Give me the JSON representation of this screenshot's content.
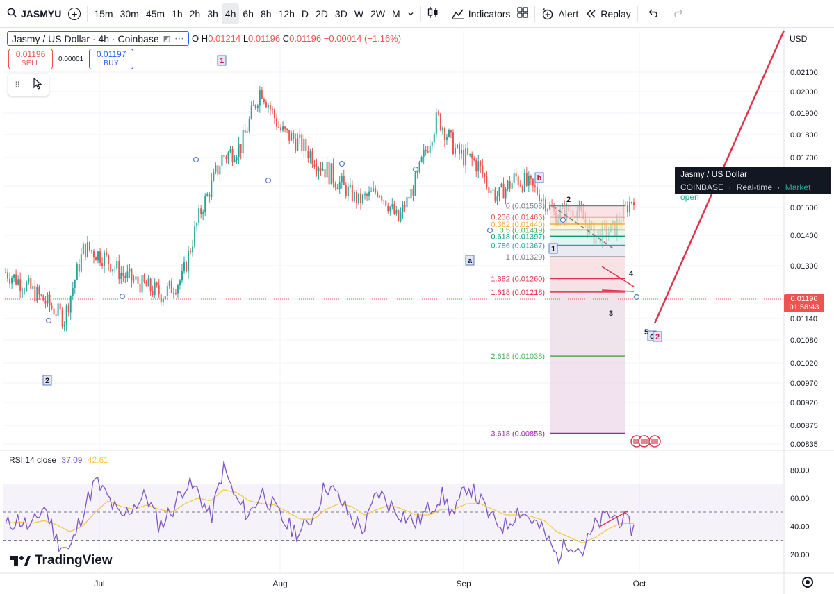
{
  "toolbar": {
    "symbol": "JASMYU",
    "intervals": [
      "15m",
      "30m",
      "45m",
      "1h",
      "2h",
      "3h",
      "4h",
      "6h",
      "8h",
      "12h",
      "D",
      "2D",
      "3D",
      "W",
      "2W",
      "M"
    ],
    "active_interval": "4h",
    "indicators_label": "Indicators",
    "alert_label": "Alert",
    "replay_label": "Replay"
  },
  "legend": {
    "title": "Jasmy / US Dollar · 4h · Coinbase",
    "o_label": "O",
    "h_label": "H",
    "l_label": "L",
    "c_label": "C",
    "h": "0.01214",
    "l": "0.01196",
    "c": "0.01196",
    "change": "−0.00014 (−1.16%)"
  },
  "trade": {
    "sell_price": "0.01196",
    "sell_label": "SELL",
    "spread": "0.00001",
    "buy_price": "0.01197",
    "buy_label": "BUY"
  },
  "currency": "USD",
  "tooltip": {
    "name": "Jasmy / US Dollar",
    "exchange": "COINBASE",
    "feed": "Real-time",
    "status": "Market open"
  },
  "last_price": {
    "price": "0.01196",
    "countdown": "01:58:43"
  },
  "rsi": {
    "label": "RSI 14 close",
    "v1": "37.09",
    "v2": "42.61"
  },
  "branding": "TradingView",
  "colors": {
    "up": "#26a69a",
    "down": "#ef5350",
    "rsi": "#7e57c2",
    "rsi_ma": "#f7c948",
    "trend": "#e0314b"
  },
  "chart_data": [
    {
      "type": "line",
      "title": "Jasmy / US Dollar · 4h · Coinbase",
      "price_axis": {
        "ticks": [
          0.021,
          0.02,
          0.019,
          0.018,
          0.017,
          0.016,
          0.015,
          0.014,
          0.013,
          0.01196,
          0.0114,
          0.0108,
          0.0102,
          0.0097,
          0.0092,
          0.00875,
          0.00835
        ],
        "tick_labels": [
          "0.02100",
          "0.02000",
          "0.01900",
          "0.01800",
          "0.01700",
          "",
          "0.01500",
          "0.01400",
          "0.01300",
          "",
          "0.01140",
          "0.01080",
          "0.01020",
          "0.00970",
          "0.00920",
          "0.00875",
          "0.00835"
        ]
      },
      "time_axis": [
        "Jul",
        "Aug",
        "Sep",
        "Oct"
      ],
      "x": [
        "Jun 25",
        "Jun 28",
        "Jul 1",
        "Jul 4",
        "Jul 7",
        "Jul 10",
        "Jul 13",
        "Jul 15",
        "Jul 17",
        "Jul 20",
        "Jul 24",
        "Jul 28",
        "Aug 1",
        "Aug 4",
        "Aug 8",
        "Aug 12",
        "Aug 14",
        "Aug 16",
        "Aug 19",
        "Aug 22",
        "Aug 26",
        "Aug 29",
        "Sep 1",
        "Sep 4",
        "Sep 8",
        "Sep 12",
        "Sep 15",
        "Sep 17",
        "Sep 20",
        "Sep 23",
        "Sep 25",
        "Sep 27",
        "Sep 29"
      ],
      "close": [
        0.0128,
        0.0124,
        0.0119,
        0.0114,
        0.0136,
        0.0133,
        0.0127,
        0.0124,
        0.0121,
        0.0126,
        0.015,
        0.017,
        0.0175,
        0.0202,
        0.0182,
        0.0176,
        0.0168,
        0.0161,
        0.0153,
        0.0158,
        0.0145,
        0.0163,
        0.0188,
        0.0172,
        0.0168,
        0.0155,
        0.0163,
        0.0158,
        0.0147,
        0.015,
        0.014,
        0.0142,
        0.0155
      ],
      "fib_levels": [
        {
          "ratio": "0",
          "price": 0.01508,
          "label": "0 (0.01508)",
          "color": "#787b86"
        },
        {
          "ratio": "0.236",
          "price": 0.01466,
          "label": "0.236 (0.01466)",
          "color": "#e04f4f"
        },
        {
          "ratio": "0.382",
          "price": 0.0144,
          "label": "0.382 (0.01440)",
          "color": "#f3a93a"
        },
        {
          "ratio": "0.5",
          "price": 0.01419,
          "label": "0.5 (0.01419)",
          "color": "#4caf50"
        },
        {
          "ratio": "0.618",
          "price": 0.01397,
          "label": "0.618 (0.01397)",
          "color": "#089981"
        },
        {
          "ratio": "0.786",
          "price": 0.01367,
          "label": "0.786 (0.01367)",
          "color": "#26a69a"
        },
        {
          "ratio": "1",
          "price": 0.01329,
          "label": "1 (0.01329)",
          "color": "#787b86"
        },
        {
          "ratio": "1.382",
          "price": 0.0126,
          "label": "1.382 (0.01260)",
          "color": "#e0314b"
        },
        {
          "ratio": "1.618",
          "price": 0.01218,
          "label": "1.618 (0.01218)",
          "color": "#e0314b"
        },
        {
          "ratio": "2.618",
          "price": 0.01038,
          "label": "2.618 (0.01038)",
          "color": "#4caf50"
        },
        {
          "ratio": "3.618",
          "price": 0.00858,
          "label": "3.618 (0.00858)",
          "color": "#9c27b0"
        }
      ],
      "wave_labels": [
        "1",
        "2",
        "a",
        "b",
        "1",
        "2",
        "3",
        "4",
        "5",
        "c",
        "2"
      ]
    },
    {
      "type": "line",
      "title": "RSI 14 close",
      "y_ticks": [
        80,
        60,
        40,
        20
      ],
      "bands": {
        "upper": 70,
        "middle": 50,
        "lower": 30
      },
      "series": [
        {
          "name": "RSI",
          "values": [
            40,
            45,
            38,
            55,
            30,
            22,
            50,
            72,
            60,
            45,
            55,
            62,
            40,
            52,
            70,
            65,
            45,
            82,
            58,
            48,
            65,
            52,
            40,
            35,
            48,
            70,
            60,
            45,
            38,
            65,
            55,
            48,
            42,
            52,
            62,
            48,
            70,
            58,
            44,
            40,
            52,
            45,
            35,
            18,
            30,
            22,
            40,
            48,
            45,
            38
          ]
        },
        {
          "name": "MA",
          "values": [
            42,
            43,
            42,
            44,
            41,
            36,
            40,
            50,
            58,
            54,
            52,
            55,
            52,
            50,
            56,
            60,
            58,
            66,
            64,
            58,
            56,
            55,
            50,
            45,
            45,
            52,
            56,
            54,
            48,
            52,
            55,
            52,
            48,
            48,
            52,
            52,
            56,
            56,
            52,
            48,
            48,
            47,
            44,
            36,
            32,
            28,
            32,
            38,
            42,
            42
          ]
        }
      ]
    }
  ]
}
